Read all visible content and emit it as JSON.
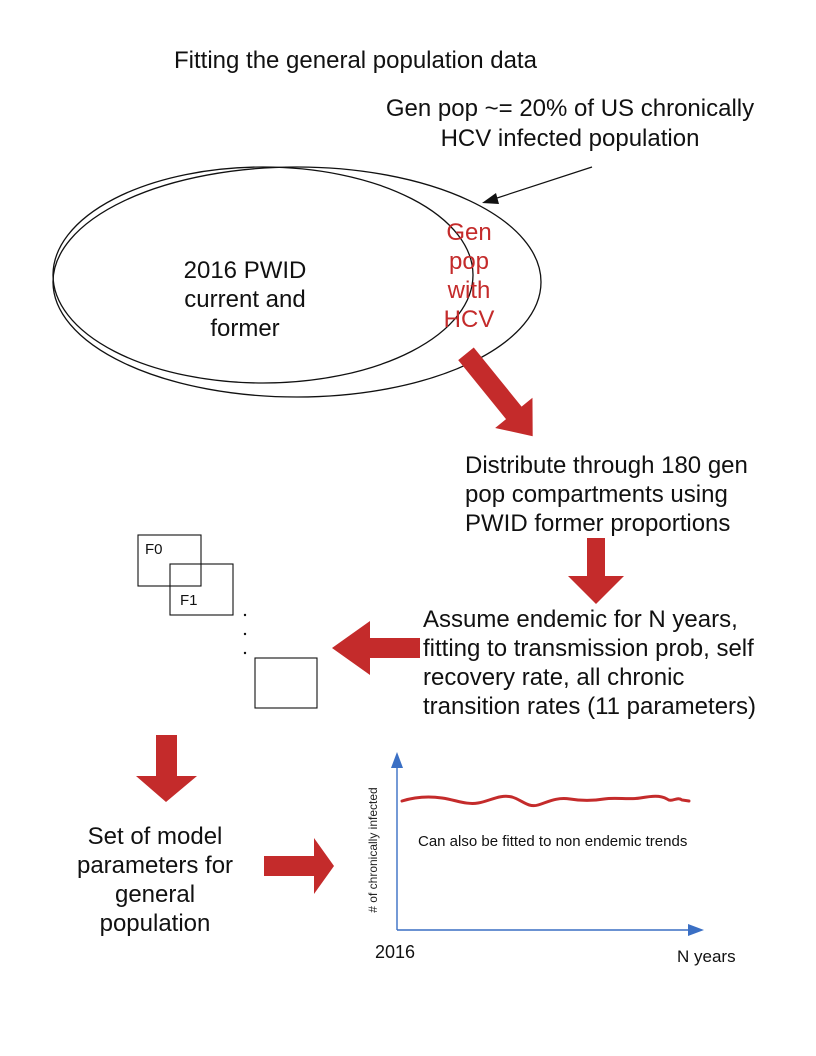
{
  "title": "Fitting the general population data",
  "annotation": "Gen pop ~= 20% of US chronically HCV infected population",
  "annotation_lines": [
    "Gen pop ~= 20% of US chronically",
    "HCV infected population"
  ],
  "pwid_label_lines": [
    "2016 PWID",
    "current and",
    "former"
  ],
  "genpop_label_lines": [
    "Gen",
    "pop",
    "with",
    "HCV"
  ],
  "step_distribute_lines": [
    "Distribute through 180 gen",
    "pop compartments using",
    "PWID former proportions"
  ],
  "step_endemic_lines": [
    "Assume endemic for N years,",
    "fitting to transmission prob, self",
    "recovery rate, all chronic",
    "transition rates (11 parameters)"
  ],
  "compartments": {
    "first": "F0",
    "second": "F1",
    "ellipsis": ". . ."
  },
  "result_lines": [
    "Set of model",
    "parameters for",
    "general",
    "population"
  ],
  "graph": {
    "ylabel": "# of chronically infected",
    "xlabel": "N years",
    "x_start": "2016",
    "note": "Can also be fitted to non endemic trends"
  },
  "colors": {
    "accent_red": "#c42b2b",
    "axis_blue": "#3a6fc4"
  }
}
